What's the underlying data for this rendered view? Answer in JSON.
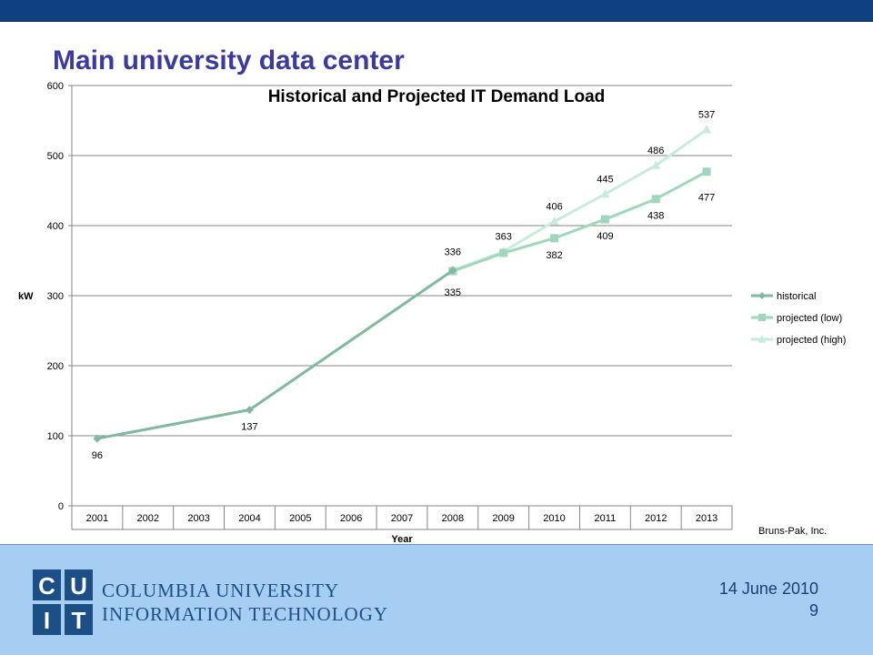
{
  "slide": {
    "title": "Main university data center",
    "credit": "Bruns-Pak, Inc."
  },
  "footer": {
    "logo_letters": [
      "C",
      "U",
      "I",
      "T"
    ],
    "logo_line1": "COLUMBIA UNIVERSITY",
    "logo_line2": "INFORMATION TECHNOLOGY",
    "date": "14 June 2010",
    "page": "9"
  },
  "colors": {
    "topbar": "#0f4080",
    "footer": "#a6cdf2",
    "title": "#3a3aa0",
    "historical": "#7fb9a0",
    "projected_low": "#9ed8bc",
    "projected_high": "#c6ecdc"
  },
  "chart_data": {
    "type": "line",
    "title": "Historical and Projected IT Demand Load",
    "xlabel": "Year",
    "ylabel": "kW",
    "categories": [
      "2001",
      "2002",
      "2003",
      "2004",
      "2005",
      "2006",
      "2007",
      "2008",
      "2009",
      "2010",
      "2011",
      "2012",
      "2013"
    ],
    "ylim": [
      0,
      600
    ],
    "yticks": [
      0,
      100,
      200,
      300,
      400,
      500,
      600
    ],
    "grid": true,
    "legend_position": "right",
    "series": [
      {
        "name": "historical",
        "marker": "diamond",
        "points": [
          {
            "x": "2001",
            "y": 96,
            "label": "96"
          },
          {
            "x": "2004",
            "y": 137,
            "label": "137"
          },
          {
            "x": "2008",
            "y": 336,
            "label": ""
          }
        ]
      },
      {
        "name": "projected (low)",
        "marker": "square",
        "points": [
          {
            "x": "2008",
            "y": 335,
            "label": "335"
          },
          {
            "x": "2009",
            "y": 361,
            "label": ""
          },
          {
            "x": "2010",
            "y": 382,
            "label": "382"
          },
          {
            "x": "2011",
            "y": 409,
            "label": "409"
          },
          {
            "x": "2012",
            "y": 438,
            "label": "438"
          },
          {
            "x": "2013",
            "y": 477,
            "label": "477"
          }
        ]
      },
      {
        "name": "projected (high)",
        "marker": "triangle",
        "points": [
          {
            "x": "2008",
            "y": 336,
            "label": "336"
          },
          {
            "x": "2009",
            "y": 363,
            "label": "363"
          },
          {
            "x": "2010",
            "y": 406,
            "label": "406"
          },
          {
            "x": "2011",
            "y": 445,
            "label": "445"
          },
          {
            "x": "2012",
            "y": 486,
            "label": "486"
          },
          {
            "x": "2013",
            "y": 537,
            "label": "537"
          }
        ]
      }
    ]
  }
}
